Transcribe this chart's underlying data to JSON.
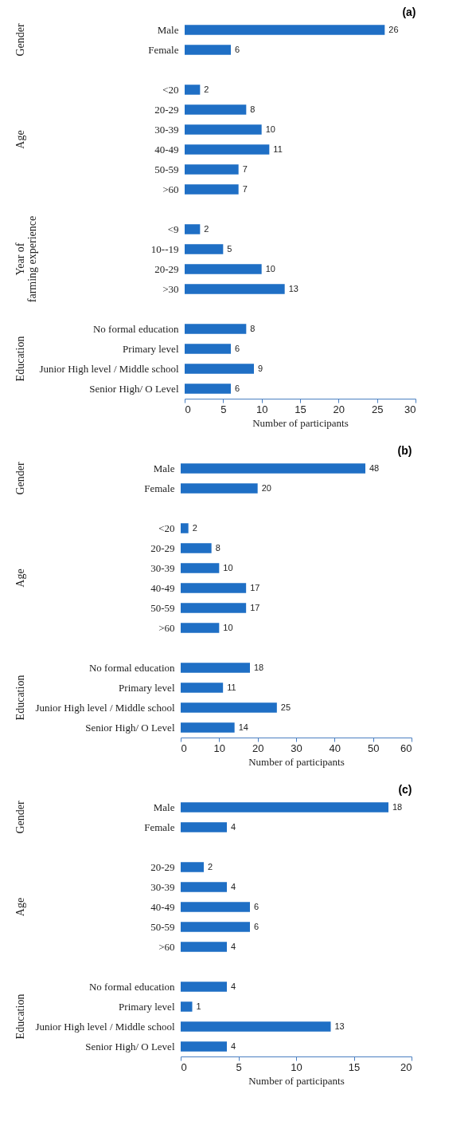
{
  "chart_data": [
    {
      "type": "bar",
      "orientation": "horizontal",
      "title": "(a)",
      "xlabel": "Number of participants",
      "color": "#1f6fc5",
      "data_labels": true,
      "categories": [
        "Male",
        "Female",
        null,
        "<20",
        "20-29",
        "30-39",
        "40-49",
        "50-59",
        ">60",
        null,
        "<9",
        "10--19",
        "20-29",
        ">30",
        null,
        "No formal education",
        "Primary level",
        "Junior High level / Middle school",
        "Senior High/ O Level"
      ],
      "values": [
        26,
        6,
        null,
        2,
        8,
        10,
        11,
        7,
        7,
        null,
        2,
        5,
        10,
        13,
        null,
        8,
        6,
        9,
        6
      ],
      "xlim": [
        0,
        30
      ],
      "xticks": [
        0,
        5,
        10,
        15,
        20,
        25,
        30
      ],
      "annotations": [
        "Gender",
        "Age",
        "Year of farming experience",
        "Education"
      ]
    },
    {
      "type": "bar",
      "orientation": "horizontal",
      "title": "(b)",
      "xlabel": "Number of participants",
      "color": "#1f6fc5",
      "data_labels": true,
      "categories": [
        "Male",
        "Female",
        null,
        "<20",
        "20-29",
        "30-39",
        "40-49",
        "50-59",
        ">60",
        null,
        "No formal education",
        "Primary level",
        "Junior High level / Middle school",
        "Senior High/ O Level"
      ],
      "values": [
        48,
        20,
        null,
        2,
        8,
        10,
        17,
        17,
        10,
        null,
        18,
        11,
        25,
        14
      ],
      "xlim": [
        0,
        60
      ],
      "xticks": [
        0,
        10,
        20,
        30,
        40,
        50,
        60
      ],
      "annotations": [
        "Gender",
        "Age",
        "Education"
      ]
    },
    {
      "type": "bar",
      "orientation": "horizontal",
      "title": "(c)",
      "xlabel": "Number of participants",
      "color": "#1f6fc5",
      "data_labels": true,
      "categories": [
        "Male",
        "Female",
        null,
        "20-29",
        "30-39",
        "40-49",
        "50-59",
        ">60",
        null,
        "No formal education",
        "Primary level",
        "Junior High level / Middle school",
        "Senior High/ O Level"
      ],
      "values": [
        18,
        4,
        null,
        2,
        4,
        6,
        6,
        4,
        null,
        4,
        1,
        13,
        4
      ],
      "xlim": [
        0,
        20
      ],
      "xticks": [
        0,
        5,
        10,
        15,
        20
      ],
      "annotations": [
        "Gender",
        "Age",
        "Education"
      ]
    }
  ]
}
